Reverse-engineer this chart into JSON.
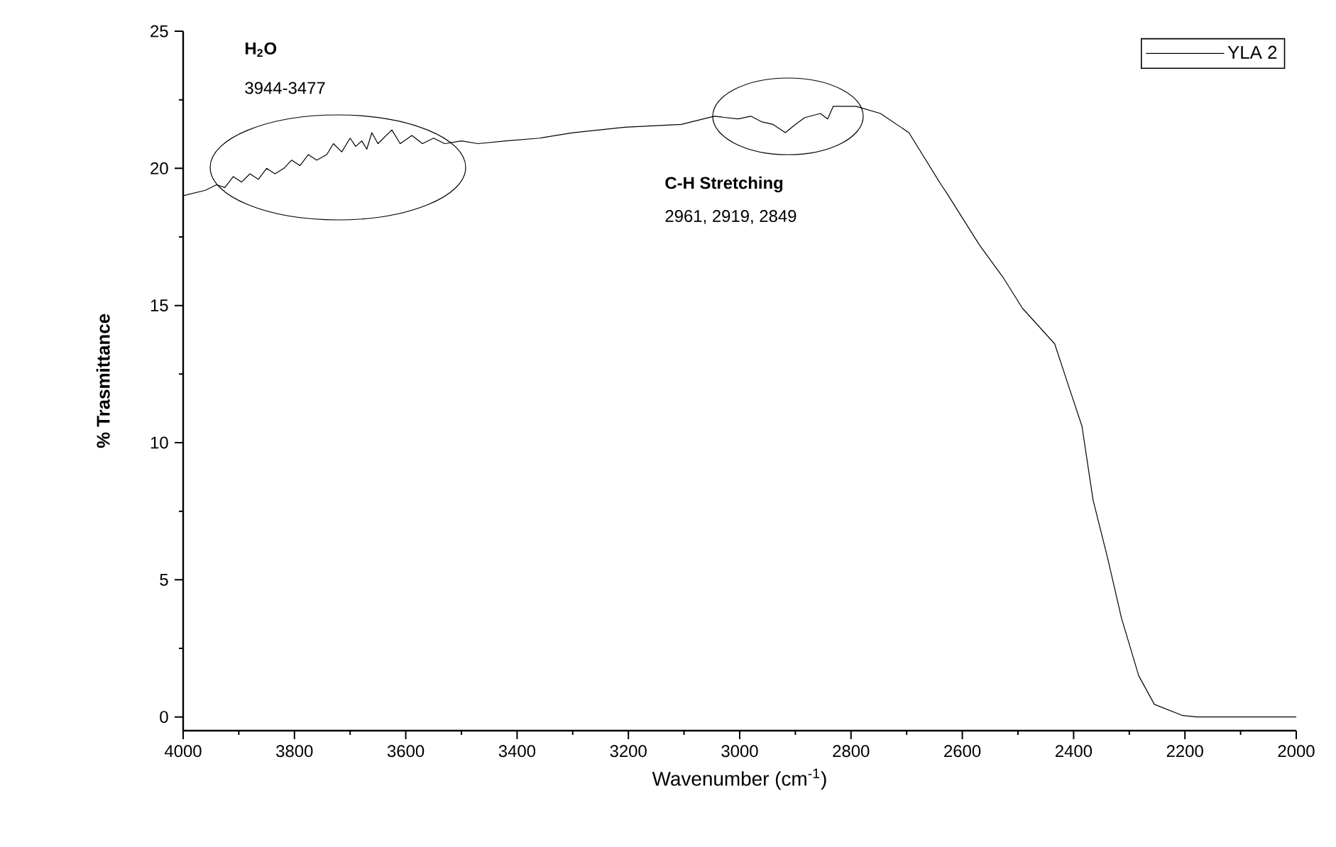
{
  "chart_data": {
    "type": "line",
    "xlabel": "Wavenumber (cm$^{-1}$)",
    "ylabel": "% Trasmittance",
    "xlim": [
      4000,
      2000
    ],
    "ylim": [
      -0.5,
      25
    ],
    "xticks": [
      4000,
      3800,
      3600,
      3400,
      3200,
      3000,
      2800,
      2600,
      2400,
      2200,
      2000
    ],
    "yticks": [
      0,
      5,
      10,
      15,
      20,
      25
    ],
    "legend": "top right",
    "grid": false,
    "annotations": [
      "H$_{2}$O",
      "3944-3477",
      "C-H Stretching",
      "2961, 2919, 2849"
    ],
    "series": [
      {
        "name": "YLA 2",
        "color": "#000000",
        "x": [
          4000,
          3960,
          3940,
          3925,
          3910,
          3895,
          3880,
          3865,
          3850,
          3835,
          3819,
          3805,
          3790,
          3775,
          3760,
          3742,
          3730,
          3715,
          3700,
          3690,
          3679,
          3670,
          3661,
          3650,
          3640,
          3625,
          3610,
          3589,
          3570,
          3550,
          3530,
          3500,
          3470,
          3420,
          3360,
          3300,
          3207,
          3105,
          3046,
          3003,
          2980,
          2961,
          2940,
          2918,
          2900,
          2883,
          2855,
          2842,
          2832,
          2791,
          2747,
          2696,
          2638,
          2628,
          2569,
          2526,
          2492,
          2434,
          2408,
          2385,
          2365,
          2339,
          2314,
          2283,
          2255,
          2204,
          2179,
          2000
        ],
        "values": [
          19.0,
          19.2,
          19.4,
          19.3,
          19.7,
          19.5,
          19.8,
          19.6,
          20.0,
          19.8,
          20.0,
          20.3,
          20.1,
          20.5,
          20.3,
          20.5,
          20.9,
          20.6,
          21.1,
          20.8,
          21.0,
          20.7,
          21.3,
          20.9,
          21.1,
          21.4,
          20.9,
          21.2,
          20.9,
          21.1,
          20.9,
          21.0,
          20.9,
          21.0,
          21.1,
          21.3,
          21.5,
          21.6,
          21.9,
          21.8,
          21.9,
          21.7,
          21.6,
          21.3,
          21.6,
          21.85,
          22.0,
          21.8,
          22.26,
          22.26,
          22.0,
          21.3,
          19.4,
          19.1,
          17.2,
          16.0,
          14.9,
          13.6,
          12.0,
          10.6,
          7.9,
          5.8,
          3.6,
          1.5,
          0.46,
          0.05,
          0.0,
          0.0
        ]
      }
    ]
  }
}
